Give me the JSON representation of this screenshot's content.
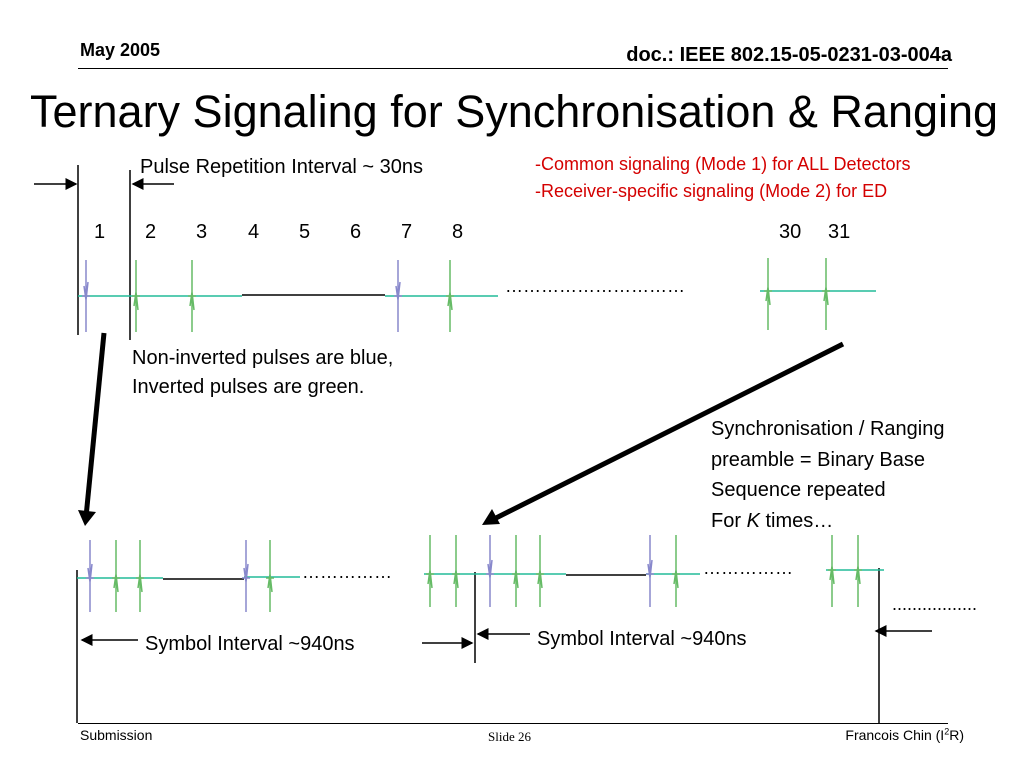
{
  "header": {
    "date": "May 2005",
    "doc": "doc.: IEEE 802.15-05-0231-03-004a"
  },
  "title": "Ternary Signaling for Synchronisation & Ranging",
  "pri_label": "Pulse Repetition Interval ~ 30ns",
  "modes": {
    "mode1": "-Common signaling (Mode 1) for ALL Detectors",
    "mode2": "-Receiver-specific signaling (Mode 2) for ED"
  },
  "pulse_numbers": [
    "1",
    "2",
    "3",
    "4",
    "5",
    "6",
    "7",
    "8",
    "30",
    "31"
  ],
  "pulse_note": {
    "line1": "Non-inverted pulses are blue,",
    "line2": "Inverted pulses are green."
  },
  "sync_note": {
    "line1": "Synchronisation / Ranging",
    "line2": "preamble = Binary Base",
    "line3": "Sequence repeated",
    "line4_pre": "For ",
    "line4_k": "K",
    "line4_post": " times…"
  },
  "symbol_interval_1": "Symbol Interval ~940ns",
  "symbol_interval_2": "Symbol Interval ~940ns",
  "ellipsis": {
    "top": "…………………………",
    "bottom_mid": "……………",
    "bottom_right": "……………",
    "right_edge": "................."
  },
  "footer": {
    "left": "Submission",
    "center": "Slide 26",
    "right_pre": "Francois Chin (I",
    "right_sup": "2",
    "right_post": "R)"
  },
  "colors": {
    "non_inverted_pulse": "#8888cc",
    "inverted_pulse": "#66bb66",
    "mode_text": "#d40000",
    "teal_line": "#22bb99"
  }
}
